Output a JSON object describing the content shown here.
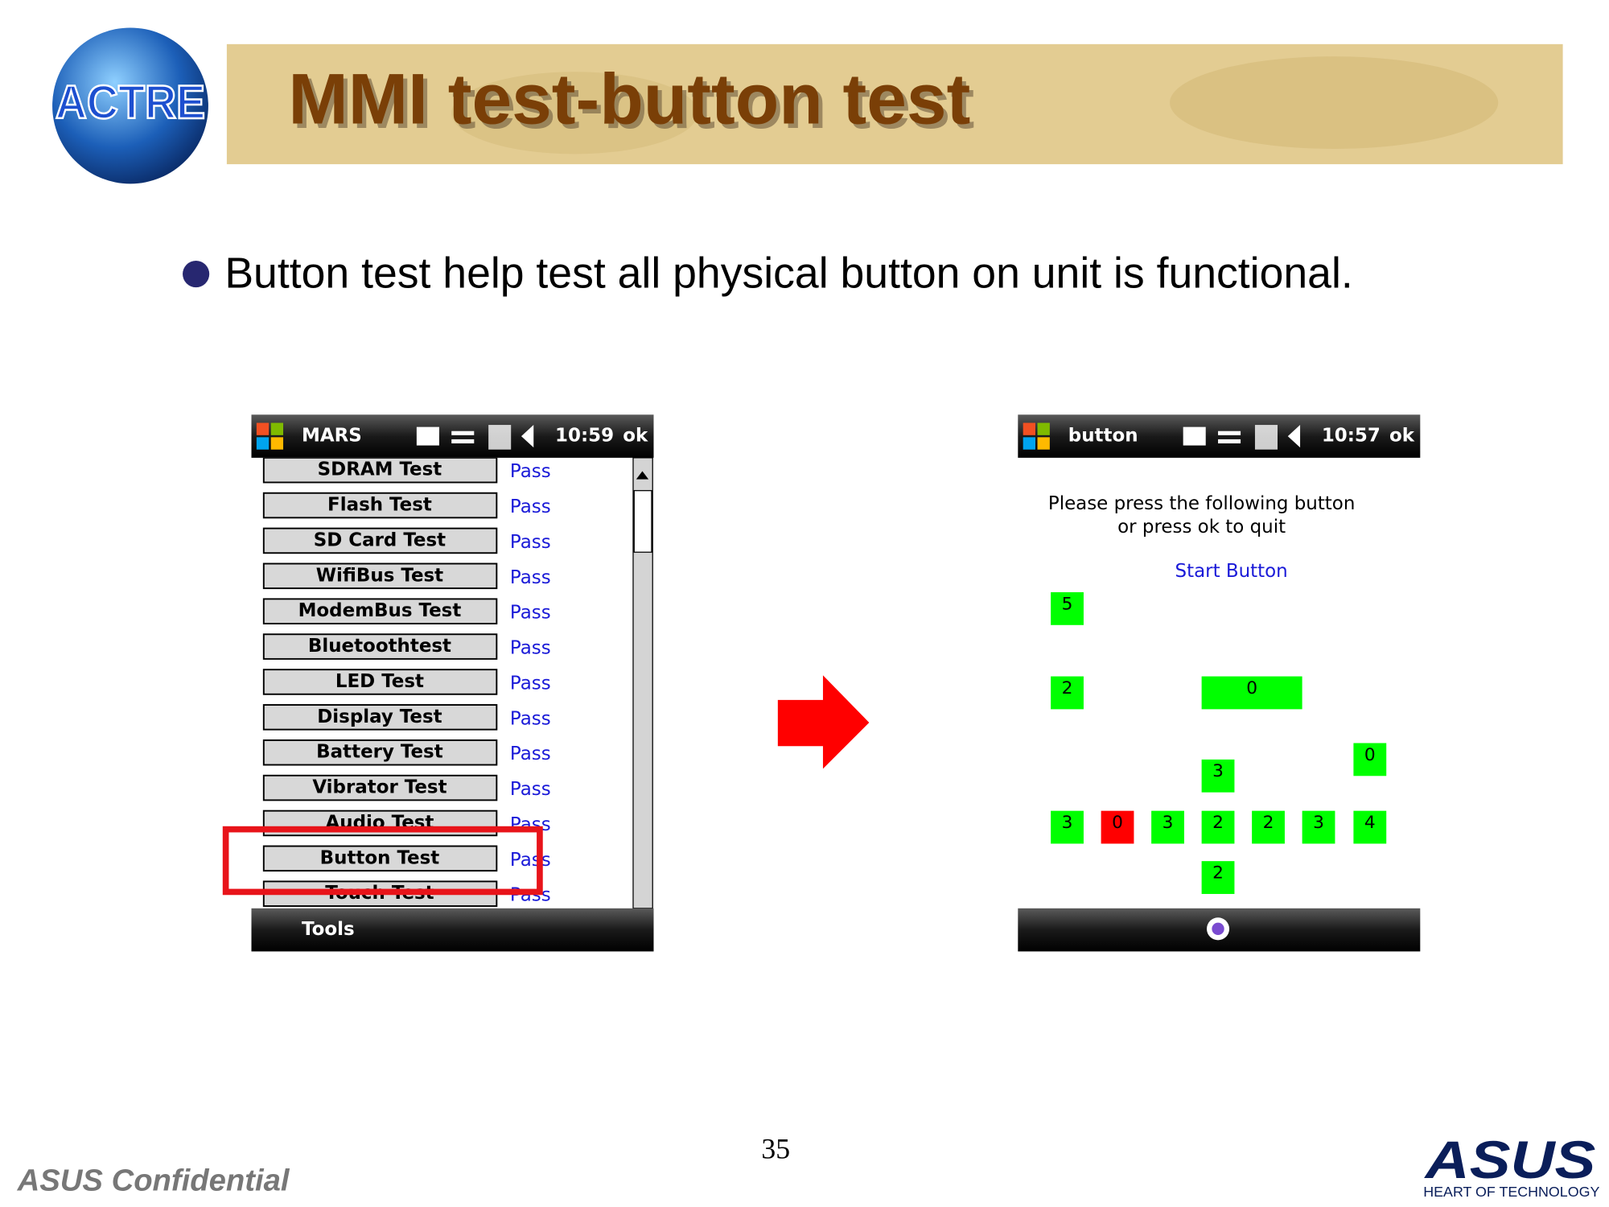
{
  "header": {
    "logo": "ACTRE",
    "title": "MMI test-button test"
  },
  "bullet": "Button test help test all physical button on unit is functional.",
  "left_screen": {
    "title": "MARS",
    "time": "10:59",
    "ok": "ok",
    "tests": [
      {
        "name": "SDRAM Test",
        "status": "Pass"
      },
      {
        "name": "Flash Test",
        "status": "Pass"
      },
      {
        "name": "SD Card Test",
        "status": "Pass"
      },
      {
        "name": "WifiBus Test",
        "status": "Pass"
      },
      {
        "name": "ModemBus Test",
        "status": "Pass"
      },
      {
        "name": "Bluetoothtest",
        "status": "Pass"
      },
      {
        "name": "LED Test",
        "status": "Pass"
      },
      {
        "name": "Display Test",
        "status": "Pass"
      },
      {
        "name": "Battery Test",
        "status": "Pass"
      },
      {
        "name": "Vibrator Test",
        "status": "Pass"
      },
      {
        "name": "Audio Test",
        "status": "Pass"
      },
      {
        "name": "Button Test",
        "status": "Pass"
      },
      {
        "name": "Touch Test",
        "status": "Pass"
      }
    ],
    "menu": "Tools"
  },
  "right_screen": {
    "title": "button",
    "time": "10:57",
    "ok": "ok",
    "instructions": [
      "Please press the following button",
      "or press ok to quit"
    ],
    "prompt": "Start Button",
    "buttons": [
      {
        "label": "5",
        "color": "#00ff00"
      },
      {
        "label": "2",
        "color": "#00ff00"
      },
      {
        "label": "0",
        "color": "#00ff00"
      },
      {
        "label": "0",
        "color": "#00ff00"
      },
      {
        "label": "3",
        "color": "#00ff00"
      },
      {
        "label": "3",
        "color": "#00ff00"
      },
      {
        "label": "0",
        "color": "#ff0000"
      },
      {
        "label": "3",
        "color": "#00ff00"
      },
      {
        "label": "2",
        "color": "#00ff00"
      },
      {
        "label": "2",
        "color": "#00ff00"
      },
      {
        "label": "3",
        "color": "#00ff00"
      },
      {
        "label": "4",
        "color": "#00ff00"
      },
      {
        "label": "2",
        "color": "#00ff00"
      }
    ]
  },
  "footer": {
    "page_number": "35",
    "confidential": "ASUS Confidential",
    "brand": "ASUS",
    "tagline": "HEART OF TECHNOLOGY"
  }
}
